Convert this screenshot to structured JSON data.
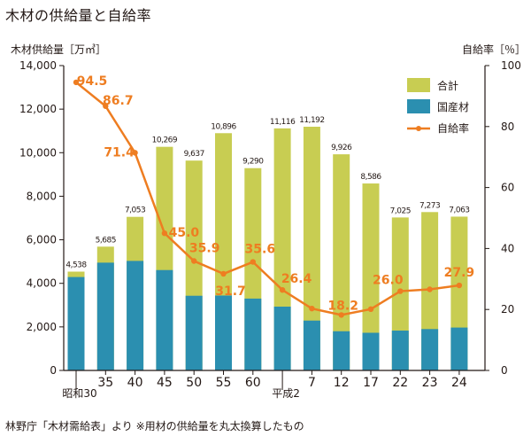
{
  "title": "木材の供給量と自給率",
  "source": "林野庁「木材需給表」より ※用材の供給量を丸太換算したもの",
  "colors": {
    "total": "#c8cd52",
    "domestic": "#2b8fb0",
    "rate": "#ee7d21",
    "text": "#231815",
    "axis": "#231815"
  },
  "chart_data": {
    "type": "bar",
    "categories": [
      "昭和30",
      "35",
      "40",
      "45",
      "50",
      "55",
      "60",
      "平成2",
      "7",
      "12",
      "17",
      "22",
      "23",
      "24"
    ],
    "series": [
      {
        "name": "合計",
        "type": "bar",
        "values": [
          4538,
          5685,
          7053,
          10269,
          9637,
          10896,
          9290,
          11116,
          11192,
          9926,
          8586,
          7025,
          7273,
          7063
        ],
        "labels": [
          "4,538",
          "5,685",
          "7,053",
          "10,269",
          "9,637",
          "10,896",
          "9,290",
          "11,116",
          "11,192",
          "9,926",
          "8,586",
          "7,025",
          "7,273",
          "7,063"
        ]
      },
      {
        "name": "国産材",
        "type": "bar",
        "values": [
          4290,
          4950,
          5030,
          4610,
          3430,
          3440,
          3300,
          2930,
          2290,
          1800,
          1730,
          1830,
          1900,
          1970
        ]
      },
      {
        "name": "自給率",
        "type": "line",
        "axis": "right",
        "values": [
          94.5,
          86.7,
          71.4,
          45.0,
          35.9,
          31.7,
          35.6,
          26.4,
          20.3,
          18.2,
          20.1,
          26.0,
          26.6,
          27.9
        ],
        "labels": [
          "94.5",
          "86.7",
          "71.4",
          "45.0",
          "35.9",
          "31.7",
          "35.6",
          "26.4",
          null,
          "18.2",
          null,
          "26.0",
          null,
          "27.9"
        ]
      }
    ],
    "y_left": {
      "label": "木材供給量［万㎥］",
      "min": 0,
      "max": 14000,
      "ticks": [
        0,
        2000,
        4000,
        6000,
        8000,
        10000,
        12000,
        14000
      ],
      "tick_labels": [
        "0",
        "2,000",
        "4,000",
        "6,000",
        "8,000",
        "10,000",
        "12,000",
        "14,000"
      ]
    },
    "y_right": {
      "label": "自給率［％］",
      "min": 0,
      "max": 100,
      "ticks": [
        0,
        20,
        40,
        60,
        80,
        100
      ],
      "tick_labels": [
        "0",
        "20",
        "40",
        "60",
        "80",
        "100"
      ]
    },
    "legend": {
      "position": "top-right",
      "items": [
        "合計",
        "国産材",
        "自給率"
      ]
    },
    "grid": false
  }
}
